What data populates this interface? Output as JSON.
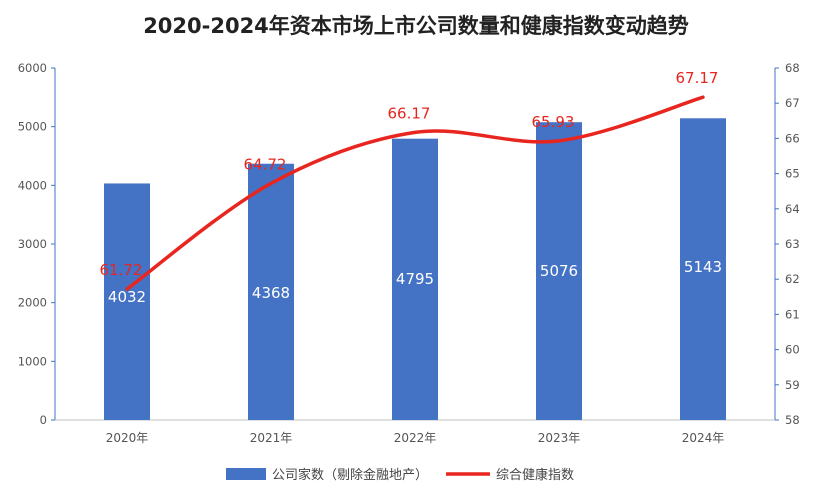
{
  "chart_data": {
    "type": "bar",
    "title": "2020-2024年资本市场上市公司数量和健康指数变动趋势",
    "categories": [
      "2020年",
      "2021年",
      "2022年",
      "2023年",
      "2024年"
    ],
    "series": [
      {
        "name": "公司家数（剔除金融地产）",
        "type": "bar",
        "axis": "left",
        "color": "#4472c4",
        "values": [
          4032,
          4368,
          4795,
          5076,
          5143
        ],
        "labels": [
          "4032",
          "4368",
          "4795",
          "5076",
          "5143"
        ]
      },
      {
        "name": "综合健康指数",
        "type": "line",
        "axis": "right",
        "color": "#e8261f",
        "values": [
          61.72,
          64.72,
          66.17,
          65.93,
          67.17
        ],
        "labels": [
          "61.72",
          "64.72",
          "66.17",
          "65.93",
          "67.17"
        ]
      }
    ],
    "y_left": {
      "min": 0,
      "max": 6000,
      "ticks": [
        "0",
        "1000",
        "2000",
        "3000",
        "4000",
        "5000",
        "6000"
      ]
    },
    "y_right": {
      "min": 58,
      "max": 68,
      "ticks": [
        "58",
        "59",
        "60",
        "61",
        "62",
        "63",
        "64",
        "65",
        "66",
        "67",
        "68"
      ]
    },
    "legend_position": "bottom",
    "grid": false
  }
}
